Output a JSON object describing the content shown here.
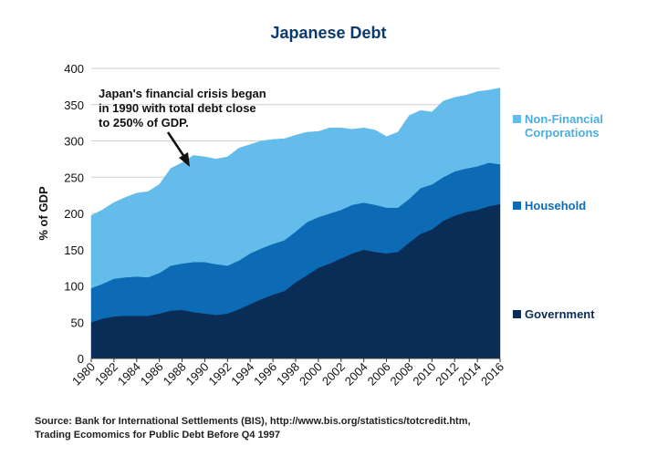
{
  "chart_data": {
    "type": "stacked_area",
    "title": "Japanese Debt",
    "y_label": "% of GDP",
    "annotation": [
      "Japan's financial crisis began",
      "in 1990 with total debt close",
      "to 250% of GDP."
    ],
    "source": [
      "Source: Bank for International Settlements (BIS), http://www.bis.org/statistics/totcredit.htm,",
      "Trading Ecomomics for Public Debt Before Q4 1997"
    ],
    "x": [
      1980,
      1981,
      1982,
      1983,
      1984,
      1985,
      1986,
      1987,
      1988,
      1989,
      1990,
      1991,
      1992,
      1993,
      1994,
      1995,
      1996,
      1997,
      1998,
      1999,
      2000,
      2001,
      2002,
      2003,
      2004,
      2005,
      2006,
      2007,
      2008,
      2009,
      2010,
      2011,
      2012,
      2013,
      2014,
      2015,
      2016
    ],
    "series": [
      {
        "name": "Government",
        "color": "#0a2d57",
        "values": [
          50,
          55,
          58,
          59,
          59,
          59,
          62,
          66,
          67,
          64,
          62,
          60,
          62,
          68,
          75,
          82,
          88,
          93,
          105,
          115,
          125,
          131,
          138,
          145,
          150,
          147,
          145,
          147,
          160,
          172,
          178,
          190,
          197,
          202,
          205,
          210,
          213
        ]
      },
      {
        "name": "Household",
        "color": "#0d6bb5",
        "values": [
          47,
          48,
          52,
          53,
          54,
          53,
          56,
          62,
          64,
          69,
          71,
          70,
          66,
          67,
          70,
          70,
          70,
          70,
          70,
          73,
          70,
          69,
          67,
          67,
          65,
          65,
          63,
          61,
          60,
          63,
          62,
          60,
          61,
          60,
          60,
          60,
          55
        ]
      },
      {
        "name": "Non-Financial Corporations",
        "color": "#63bce9",
        "values": [
          100,
          102,
          105,
          110,
          115,
          118,
          122,
          134,
          139,
          147,
          145,
          145,
          150,
          155,
          150,
          148,
          144,
          140,
          133,
          124,
          118,
          118,
          113,
          104,
          103,
          103,
          98,
          104,
          115,
          107,
          100,
          105,
          102,
          101,
          103,
          100,
          105
        ]
      }
    ],
    "xlim": [
      1980,
      2016
    ],
    "xticks": [
      1980,
      1982,
      1984,
      1986,
      1988,
      1990,
      1992,
      1994,
      1996,
      1998,
      2000,
      2002,
      2004,
      2006,
      2008,
      2010,
      2012,
      2014,
      2016
    ],
    "ylim": [
      0,
      400
    ],
    "yticks": [
      0,
      50,
      100,
      150,
      200,
      250,
      300,
      350,
      400
    ],
    "grid": true
  }
}
